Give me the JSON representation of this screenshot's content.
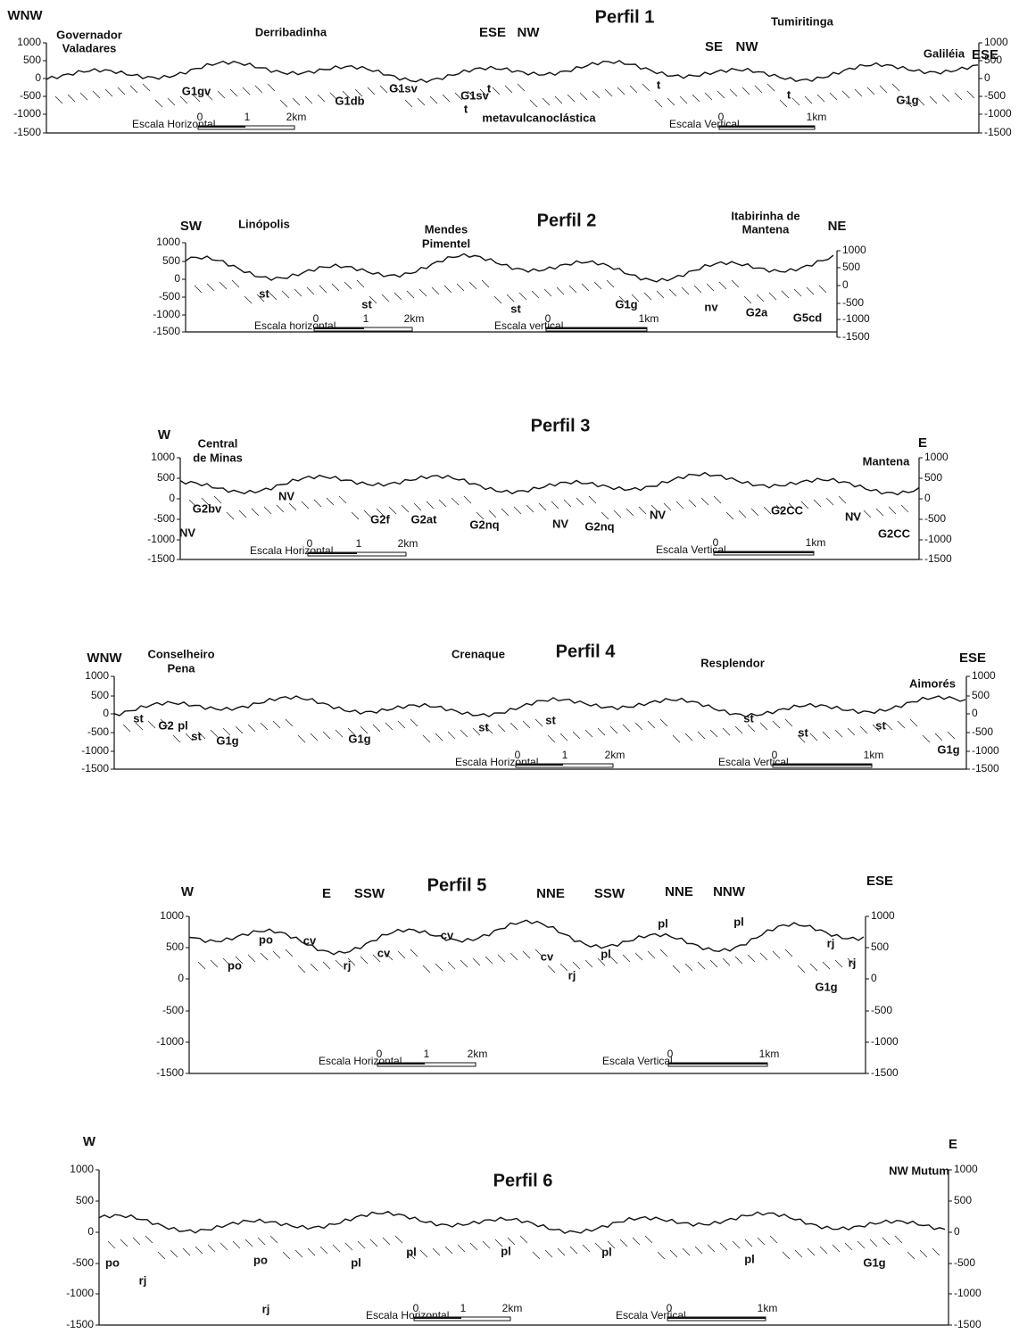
{
  "profiles": [
    {
      "title": "Perfil 1",
      "labels": [
        "WNW",
        "Governador",
        "Valadares",
        "Derribadinha",
        "G1gv",
        "G1db",
        "G1sv",
        "G1sv",
        "t",
        "t",
        "metavulcanoclástica",
        "ESE",
        "NW",
        "SE",
        "NW",
        "Tumiritinga",
        "t",
        "t",
        "Galiléia",
        "G1g",
        "ESE"
      ],
      "left_ticks": [
        "1000",
        "500",
        "0",
        "-500",
        "-1000",
        "-1500"
      ],
      "right_ticks": [
        "1000",
        "500",
        "0",
        "-500",
        "-1000",
        "-1500"
      ],
      "scale_horizontal": {
        "label": "Escala Horizontal",
        "ticks": [
          "0",
          "1",
          "2km"
        ]
      },
      "scale_vertical": {
        "label": "Escala Vertical",
        "ticks": [
          "0",
          "1km"
        ]
      }
    },
    {
      "title": "Perfil 2",
      "labels": [
        "SW",
        "Linópolis",
        "Mendes",
        "Pimentel",
        "st",
        "st",
        "st",
        "G1g",
        "Itabirinha de",
        "Mantena",
        "NE",
        "nv",
        "G2a",
        "G5cd"
      ],
      "left_ticks": [
        "1000",
        "500",
        "0",
        "-500",
        "-1000",
        "-1500"
      ],
      "right_ticks": [
        "1000",
        "500",
        "0",
        "-500",
        "-1000",
        "-1500"
      ],
      "scale_horizontal": {
        "label": "Escala horizontal",
        "ticks": [
          "0",
          "1",
          "2km"
        ]
      },
      "scale_vertical": {
        "label": "Escala vertical",
        "ticks": [
          "0",
          "1km"
        ]
      }
    },
    {
      "title": "Perfil 3",
      "labels": [
        "W",
        "Central",
        "de Minas",
        "G2bv",
        "NV",
        "NV",
        "G2f",
        "G2at",
        "G2nq",
        "NV",
        "G2nq",
        "NV",
        "G2CC",
        "NV",
        "G2CC",
        "Mantena",
        "E"
      ],
      "left_ticks": [
        "1000",
        "500",
        "0",
        "-500",
        "-1000",
        "-1500"
      ],
      "right_ticks": [
        "1000",
        "500",
        "0",
        "-500",
        "-1000",
        "-1500"
      ],
      "scale_horizontal": {
        "label": "Escala Horizontal",
        "ticks": [
          "0",
          "1",
          "2km"
        ]
      },
      "scale_vertical": {
        "label": "Escala Vertical",
        "ticks": [
          "0",
          "1km"
        ]
      }
    },
    {
      "title": "Perfil 4",
      "labels": [
        "WNW",
        "Conselheiro",
        "Pena",
        "st",
        "G2",
        "pl",
        "st",
        "G1g",
        "G1g",
        "Crenaque",
        "st",
        "st",
        "Resplendor",
        "st",
        "st",
        "Aimorés",
        "st",
        "G1g",
        "ESE"
      ],
      "left_ticks": [
        "1000",
        "500",
        "0",
        "-500",
        "-1000",
        "-1500"
      ],
      "right_ticks": [
        "1000",
        "500",
        "0",
        "-500",
        "-1000",
        "-1500"
      ],
      "scale_horizontal": {
        "label": "Escala Horizontal",
        "ticks": [
          "0",
          "1",
          "2km"
        ]
      },
      "scale_vertical": {
        "label": "Escala Vertical",
        "ticks": [
          "0",
          "1km"
        ]
      }
    },
    {
      "title": "Perfil 5",
      "labels": [
        "W",
        "E",
        "SSW",
        "NNE",
        "SSW",
        "NNE",
        "NNW",
        "ESE",
        "po",
        "po",
        "cv",
        "rj",
        "cv",
        "cv",
        "cv",
        "rj",
        "pl",
        "pl",
        "pl",
        "rj",
        "G1g",
        "rj"
      ],
      "left_ticks": [
        "1000",
        "500",
        "0",
        "-500",
        "-1000",
        "-1500"
      ],
      "right_ticks": [
        "1000",
        "500",
        "0",
        "-500",
        "-1000",
        "-1500"
      ],
      "scale_horizontal": {
        "label": "Escala Horizontal",
        "ticks": [
          "0",
          "1",
          "2km"
        ]
      },
      "scale_vertical": {
        "label": "Escala Vertical",
        "ticks": [
          "0",
          "1km"
        ]
      }
    },
    {
      "title": "Perfil 6",
      "labels": [
        "W",
        "po",
        "rj",
        "po",
        "rj",
        "pl",
        "pl",
        "pl",
        "pl",
        "pl",
        "G1g",
        "NW Mutum",
        "E"
      ],
      "left_ticks": [
        "1000",
        "500",
        "0",
        "-500",
        "-1000",
        "-1500"
      ],
      "right_ticks": [
        "1000",
        "500",
        "0",
        "-500",
        "-1000",
        "-1500"
      ],
      "scale_horizontal": {
        "label": "Escala Horizontal",
        "ticks": [
          "0",
          "1",
          "2km"
        ]
      },
      "scale_vertical": {
        "label": "Escala Vertical",
        "ticks": [
          "0",
          "1km"
        ]
      }
    }
  ]
}
